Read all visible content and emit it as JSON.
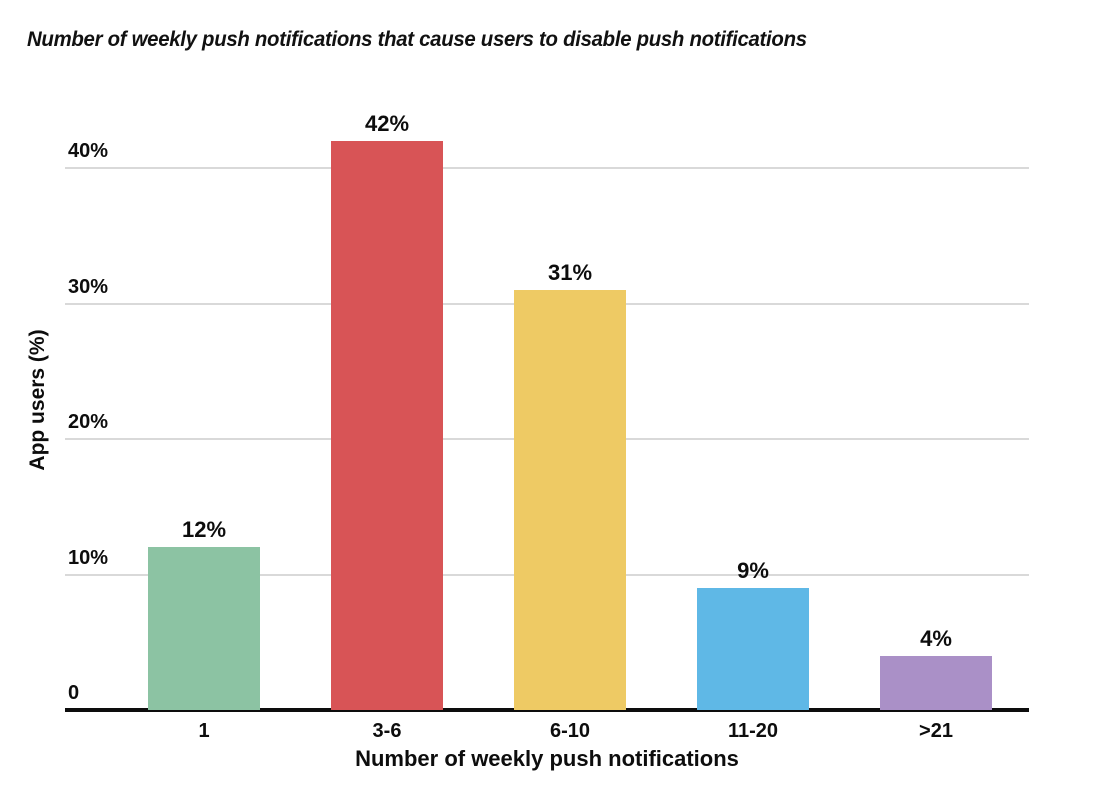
{
  "title": "Number of weekly push notifications that cause users to disable push notifications",
  "colors": {
    "background": "#ffffff",
    "gridline": "#d9d9d9",
    "axis_line": "#0d0d0d",
    "text": "#0d0d0d"
  },
  "chart_data": {
    "type": "bar",
    "title": "Number of weekly push notifications that cause users to disable push notifications",
    "xlabel": "Number of weekly push notifications",
    "ylabel": "App users (%)",
    "categories": [
      "1",
      "3-6",
      "6-10",
      "11-20",
      ">21"
    ],
    "values": [
      12,
      42,
      31,
      9,
      4
    ],
    "value_labels": [
      "12%",
      "42%",
      "31%",
      "9%",
      "4%"
    ],
    "bar_colors": [
      "#8cc3a3",
      "#d85456",
      "#eeca64",
      "#5fb8e6",
      "#aa90c7"
    ],
    "ylim": [
      0,
      43
    ],
    "yticks": [
      {
        "value": 0,
        "label": "0"
      },
      {
        "value": 10,
        "label": "10%"
      },
      {
        "value": 20,
        "label": "20%"
      },
      {
        "value": 30,
        "label": "30%"
      },
      {
        "value": 40,
        "label": "40%"
      }
    ],
    "grid": "horizontal",
    "legend": "none"
  }
}
